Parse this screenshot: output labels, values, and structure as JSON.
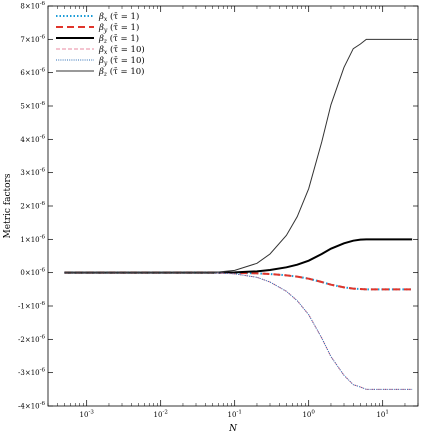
{
  "chart_data": {
    "type": "line",
    "xlabel": "N",
    "ylabel": "Metric factors",
    "xscale": "log",
    "xlim": [
      0.0003,
      30
    ],
    "ylim": [
      -4e-06,
      8e-06
    ],
    "grid": false,
    "legend_position": "top-left",
    "x_ticks": [
      {
        "value": 0.001,
        "label": "10-3",
        "base": "10",
        "exp": "-3"
      },
      {
        "value": 0.01,
        "label": "10-2",
        "base": "10",
        "exp": "-2"
      },
      {
        "value": 0.1,
        "label": "10-1",
        "base": "10",
        "exp": "-1"
      },
      {
        "value": 1,
        "label": "100",
        "base": "10",
        "exp": "0"
      },
      {
        "value": 10,
        "label": "101",
        "base": "10",
        "exp": "1"
      }
    ],
    "y_ticks": [
      {
        "value": 8e-06,
        "mant": "8",
        "label": "8×10-6"
      },
      {
        "value": 7e-06,
        "mant": "7",
        "label": "7×10-6"
      },
      {
        "value": 6e-06,
        "mant": "6",
        "label": "6×10-6"
      },
      {
        "value": 5e-06,
        "mant": "5",
        "label": "5×10-6"
      },
      {
        "value": 4e-06,
        "mant": "4",
        "label": "4×10-6"
      },
      {
        "value": 3e-06,
        "mant": "3",
        "label": "3×10-6"
      },
      {
        "value": 2e-06,
        "mant": "2",
        "label": "2×10-6"
      },
      {
        "value": 1e-06,
        "mant": "1",
        "label": "1×10-6"
      },
      {
        "value": 0,
        "mant": "0",
        "label": "0×10-6"
      },
      {
        "value": -1e-06,
        "mant": "-1",
        "label": "-1×10-6"
      },
      {
        "value": -2e-06,
        "mant": "-2",
        "label": "-2×10-6"
      },
      {
        "value": -3e-06,
        "mant": "-3",
        "label": "-3×10-6"
      },
      {
        "value": -4e-06,
        "mant": "-4",
        "label": "-4×10-6"
      }
    ],
    "y_tick_suffix": {
      "times": "×10",
      "exp": "-6"
    },
    "x": [
      0.0005,
      0.001,
      0.01,
      0.05,
      0.1,
      0.2,
      0.3,
      0.5,
      0.7,
      1,
      1.5,
      2,
      3,
      4,
      5,
      6,
      7,
      10,
      15,
      25
    ],
    "series": [
      {
        "name": "βx (τ̄ = 1)",
        "sym": "β",
        "sub": "x",
        "arg": " (τ̄ = 1)",
        "color": "#1a9bd7",
        "dash": "1.5,2",
        "width": 2.0,
        "values": [
          0,
          0,
          0,
          0,
          -5e-09,
          -2e-08,
          -4e-08,
          -8e-08,
          -1.2e-07,
          -1.8e-07,
          -2.8e-07,
          -3.6e-07,
          -4.4e-07,
          -4.8e-07,
          -4.9e-07,
          -5e-07,
          -5e-07,
          -5e-07,
          -5e-07,
          -5e-07
        ]
      },
      {
        "name": "βy (τ̄ = 1)",
        "sym": "β",
        "sub": "y",
        "arg": " (τ̄ = 1)",
        "color": "#e0352b",
        "dash": "7,4",
        "width": 2.0,
        "values": [
          0,
          0,
          0,
          0,
          -5e-09,
          -2e-08,
          -4e-08,
          -8e-08,
          -1.2e-07,
          -1.8e-07,
          -2.8e-07,
          -3.6e-07,
          -4.4e-07,
          -4.8e-07,
          -4.9e-07,
          -5e-07,
          -5e-07,
          -5e-07,
          -5e-07,
          -5e-07
        ]
      },
      {
        "name": "βz (τ̄ = 1)",
        "sym": "β",
        "sub": "z",
        "arg": " (τ̄ = 1)",
        "color": "#000000",
        "dash": "",
        "width": 2.0,
        "values": [
          0,
          0,
          0,
          0,
          1e-08,
          4e-08,
          8e-08,
          1.6e-07,
          2.4e-07,
          3.6e-07,
          5.6e-07,
          7.2e-07,
          8.8e-07,
          9.6e-07,
          9.9e-07,
          1e-06,
          1e-06,
          1e-06,
          1e-06,
          1e-06
        ]
      },
      {
        "name": "βx (τ̄ = 10)",
        "sym": "β",
        "sub": "x",
        "arg": " (τ̄ = 10)",
        "color": "#e88aa0",
        "dash": "4,2",
        "width": 1.0,
        "values": [
          0,
          0,
          0,
          0,
          -3.5e-08,
          -1.4e-07,
          -2.8e-07,
          -5.6e-07,
          -8.4e-07,
          -1.26e-06,
          -1.96e-06,
          -2.52e-06,
          -3.08e-06,
          -3.36e-06,
          -3.43e-06,
          -3.5e-06,
          -3.5e-06,
          -3.5e-06,
          -3.5e-06,
          -3.5e-06
        ]
      },
      {
        "name": "βy (τ̄ = 10)",
        "sym": "β",
        "sub": "y",
        "arg": " (τ̄ = 10)",
        "color": "#2e6fb5",
        "dash": "1,1.2",
        "width": 1.0,
        "values": [
          0,
          0,
          0,
          0,
          -3.5e-08,
          -1.4e-07,
          -2.8e-07,
          -5.6e-07,
          -8.4e-07,
          -1.26e-06,
          -1.96e-06,
          -2.52e-06,
          -3.08e-06,
          -3.36e-06,
          -3.43e-06,
          -3.5e-06,
          -3.5e-06,
          -3.5e-06,
          -3.5e-06,
          -3.5e-06
        ]
      },
      {
        "name": "βz (τ̄ = 10)",
        "sym": "β",
        "sub": "z",
        "arg": " (τ̄ = 10)",
        "color": "#333333",
        "dash": "",
        "width": 1.0,
        "values": [
          0,
          0,
          0,
          0,
          7e-08,
          2.8e-07,
          5.6e-07,
          1.12e-06,
          1.68e-06,
          2.52e-06,
          3.92e-06,
          5.04e-06,
          6.16e-06,
          6.72e-06,
          6.86e-06,
          7e-06,
          7e-06,
          7e-06,
          7e-06,
          7e-06
        ]
      }
    ]
  }
}
